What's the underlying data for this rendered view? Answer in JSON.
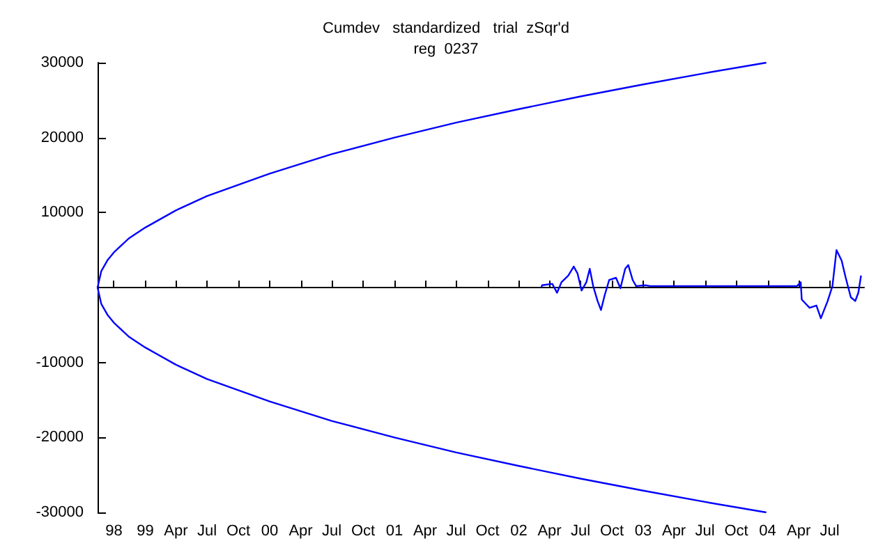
{
  "chart_data": {
    "type": "line",
    "title": "Cumdev   standardized   trial  zSqr'd",
    "subtitle": "reg  0237",
    "xlim": [
      "1998-08-14",
      "2004-10-10"
    ],
    "xticks": [
      {
        "value": "1998-10",
        "label": "98"
      },
      {
        "value": "1999-01",
        "label": "99"
      },
      {
        "value": "1999-04",
        "label": "Apr"
      },
      {
        "value": "1999-07",
        "label": "Jul"
      },
      {
        "value": "1999-10",
        "label": "Oct"
      },
      {
        "value": "2000-01",
        "label": "00"
      },
      {
        "value": "2000-04",
        "label": "Apr"
      },
      {
        "value": "2000-07",
        "label": "Jul"
      },
      {
        "value": "2000-10",
        "label": "Oct"
      },
      {
        "value": "2001-01",
        "label": "01"
      },
      {
        "value": "2001-04",
        "label": "Apr"
      },
      {
        "value": "2001-07",
        "label": "Jul"
      },
      {
        "value": "2001-10",
        "label": "Oct"
      },
      {
        "value": "2002-01",
        "label": "02"
      },
      {
        "value": "2002-04",
        "label": "Apr"
      },
      {
        "value": "2002-07",
        "label": "Jul"
      },
      {
        "value": "2002-10",
        "label": "Oct"
      },
      {
        "value": "2003-01",
        "label": "03"
      },
      {
        "value": "2003-04",
        "label": "Apr"
      },
      {
        "value": "2003-07",
        "label": "Jul"
      },
      {
        "value": "2003-10",
        "label": "Oct"
      },
      {
        "value": "2004-01",
        "label": "04"
      },
      {
        "value": "2004-04",
        "label": "Apr"
      },
      {
        "value": "2004-07",
        "label": "Jul"
      }
    ],
    "ylim": [
      -30000,
      30000
    ],
    "yticks": [
      -30000,
      -20000,
      -10000,
      10000,
      20000,
      30000
    ],
    "grid": false,
    "marker": "none",
    "line_style": "solid",
    "series": [
      {
        "color": "#0000ff",
        "x": [
          "2003-12-28",
          "2003-07-01",
          "2003-01-01",
          "2002-07-01",
          "2002-01-01",
          "2001-07-01",
          "2001-01-01",
          "2000-07-01",
          "2000-01-01",
          "1999-07-01",
          "1999-04-01",
          "1999-01-01",
          "1998-11-15",
          "1998-10-01",
          "1998-09-13",
          "1998-08-25",
          "1998-08-14",
          "1998-08-25",
          "1998-09-13",
          "1998-10-01",
          "1998-11-15",
          "1999-01-01",
          "1999-04-01",
          "1999-07-01",
          "2000-01-01",
          "2000-07-01",
          "2001-01-01",
          "2001-07-01",
          "2002-01-01",
          "2002-07-01",
          "2003-01-01",
          "2003-07-01",
          "2003-12-28"
        ],
        "values": [
          30000,
          28600,
          27100,
          25500,
          23800,
          22000,
          20000,
          17800,
          15200,
          12200,
          10300,
          8000,
          6600,
          4700,
          3700,
          2200,
          0,
          -2200,
          -3700,
          -4700,
          -6600,
          -8000,
          -10300,
          -12200,
          -15200,
          -17800,
          -20000,
          -22000,
          -23800,
          -25500,
          -27100,
          -28600,
          -30000
        ]
      },
      {
        "color": "#0000ff",
        "x": [
          "2002-03-08",
          "2002-03-10",
          "2002-04-09",
          "2002-04-23",
          "2002-05-06",
          "2002-05-26",
          "2002-06-11",
          "2002-06-22",
          "2002-07-04",
          "2002-07-18",
          "2002-07-28",
          "2002-08-07",
          "2002-08-20",
          "2002-08-30",
          "2002-09-10",
          "2002-09-23",
          "2002-10-13",
          "2002-10-26",
          "2002-11-09",
          "2002-11-18",
          "2002-12-01",
          "2002-12-11",
          "2003-01-07",
          "2003-01-21",
          "2004-03-27",
          "2004-04-07",
          "2004-04-10",
          "2004-05-03",
          "2004-05-23",
          "2004-06-05",
          "2004-06-25",
          "2004-07-09",
          "2004-07-21",
          "2004-08-05",
          "2004-08-17",
          "2004-09-01",
          "2004-09-14",
          "2004-09-23",
          "2004-10-01"
        ],
        "values": [
          0,
          300,
          500,
          -700,
          700,
          1600,
          2800,
          1900,
          -400,
          700,
          2500,
          200,
          -1800,
          -3000,
          -1000,
          1000,
          1300,
          -100,
          2500,
          3000,
          1000,
          200,
          300,
          200,
          200,
          700,
          -1600,
          -2700,
          -2400,
          -4100,
          -1800,
          200,
          5000,
          3600,
          1300,
          -1300,
          -1800,
          -700,
          1600
        ]
      }
    ]
  }
}
